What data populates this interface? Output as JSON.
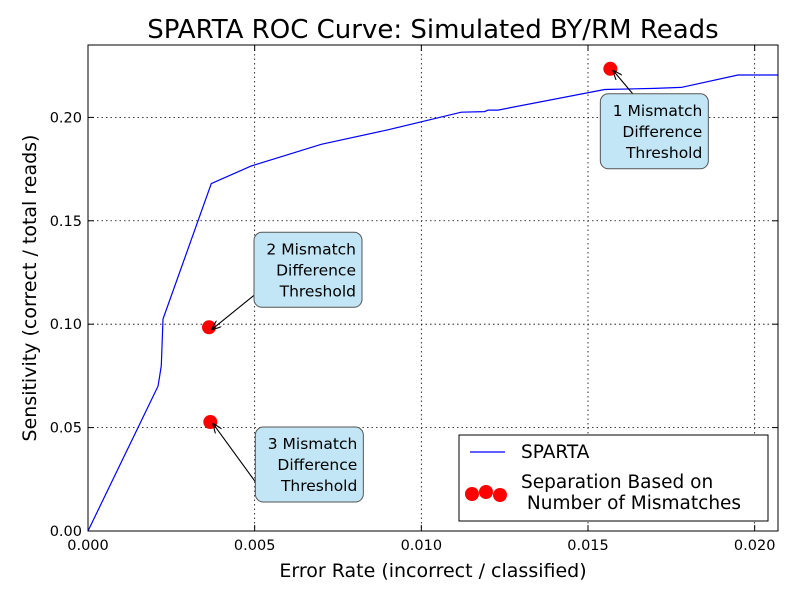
{
  "chart_data": {
    "type": "line",
    "title": "SPARTA ROC Curve: Simulated BY/RM Reads",
    "xlabel": "Error Rate (incorrect / classified)",
    "ylabel": "Sensitivity (correct / total reads)",
    "xlim": [
      0,
      0.0207
    ],
    "ylim": [
      0,
      0.235
    ],
    "x_ticks": [
      0.0,
      0.005,
      0.01,
      0.015,
      0.02
    ],
    "x_tick_labels": [
      "0.000",
      "0.005",
      "0.010",
      "0.015",
      "0.020"
    ],
    "y_ticks": [
      0.0,
      0.05,
      0.1,
      0.15,
      0.2
    ],
    "y_tick_labels": [
      "0.00",
      "0.05",
      "0.10",
      "0.15",
      "0.20"
    ],
    "grid": true,
    "legend_position": "bottom-right",
    "series": [
      {
        "name": "SPARTA",
        "kind": "line",
        "color": "#0000ff",
        "points": [
          [
            0.0,
            0.0
          ],
          [
            0.0021,
            0.07
          ],
          [
            0.00215,
            0.075
          ],
          [
            0.0022,
            0.08
          ],
          [
            0.00225,
            0.1025
          ],
          [
            0.0037,
            0.168
          ],
          [
            0.0049,
            0.1765
          ],
          [
            0.007,
            0.187
          ],
          [
            0.009,
            0.194
          ],
          [
            0.0112,
            0.2025
          ],
          [
            0.0119,
            0.2028
          ],
          [
            0.012,
            0.2035
          ],
          [
            0.0123,
            0.2035
          ],
          [
            0.0155,
            0.2135
          ],
          [
            0.017,
            0.214
          ],
          [
            0.0178,
            0.2145
          ],
          [
            0.0195,
            0.2205
          ],
          [
            0.0207,
            0.2205
          ]
        ]
      },
      {
        "name": "Separation Based on\n Number of Mismatches",
        "legend_lines": [
          "Separation Based on",
          " Number of Mismatches"
        ],
        "kind": "scatter",
        "color": "#ff0000",
        "points": [
          [
            0.01567,
            0.2235
          ],
          [
            0.00363,
            0.0985
          ],
          [
            0.00367,
            0.0527
          ]
        ]
      }
    ],
    "annotations": [
      {
        "lines": [
          "1 Mismatch",
          "Difference",
          "Threshold"
        ],
        "point": [
          0.01567,
          0.2235
        ]
      },
      {
        "lines": [
          "2 Mismatch",
          "Difference",
          "Threshold"
        ],
        "point": [
          0.00363,
          0.0985
        ]
      },
      {
        "lines": [
          "3 Mismatch",
          "Difference",
          "Threshold"
        ],
        "point": [
          0.00367,
          0.0527
        ]
      }
    ],
    "annotation_style": {
      "box_fill": "#c2e6f5",
      "box_stroke": "#555555"
    }
  }
}
